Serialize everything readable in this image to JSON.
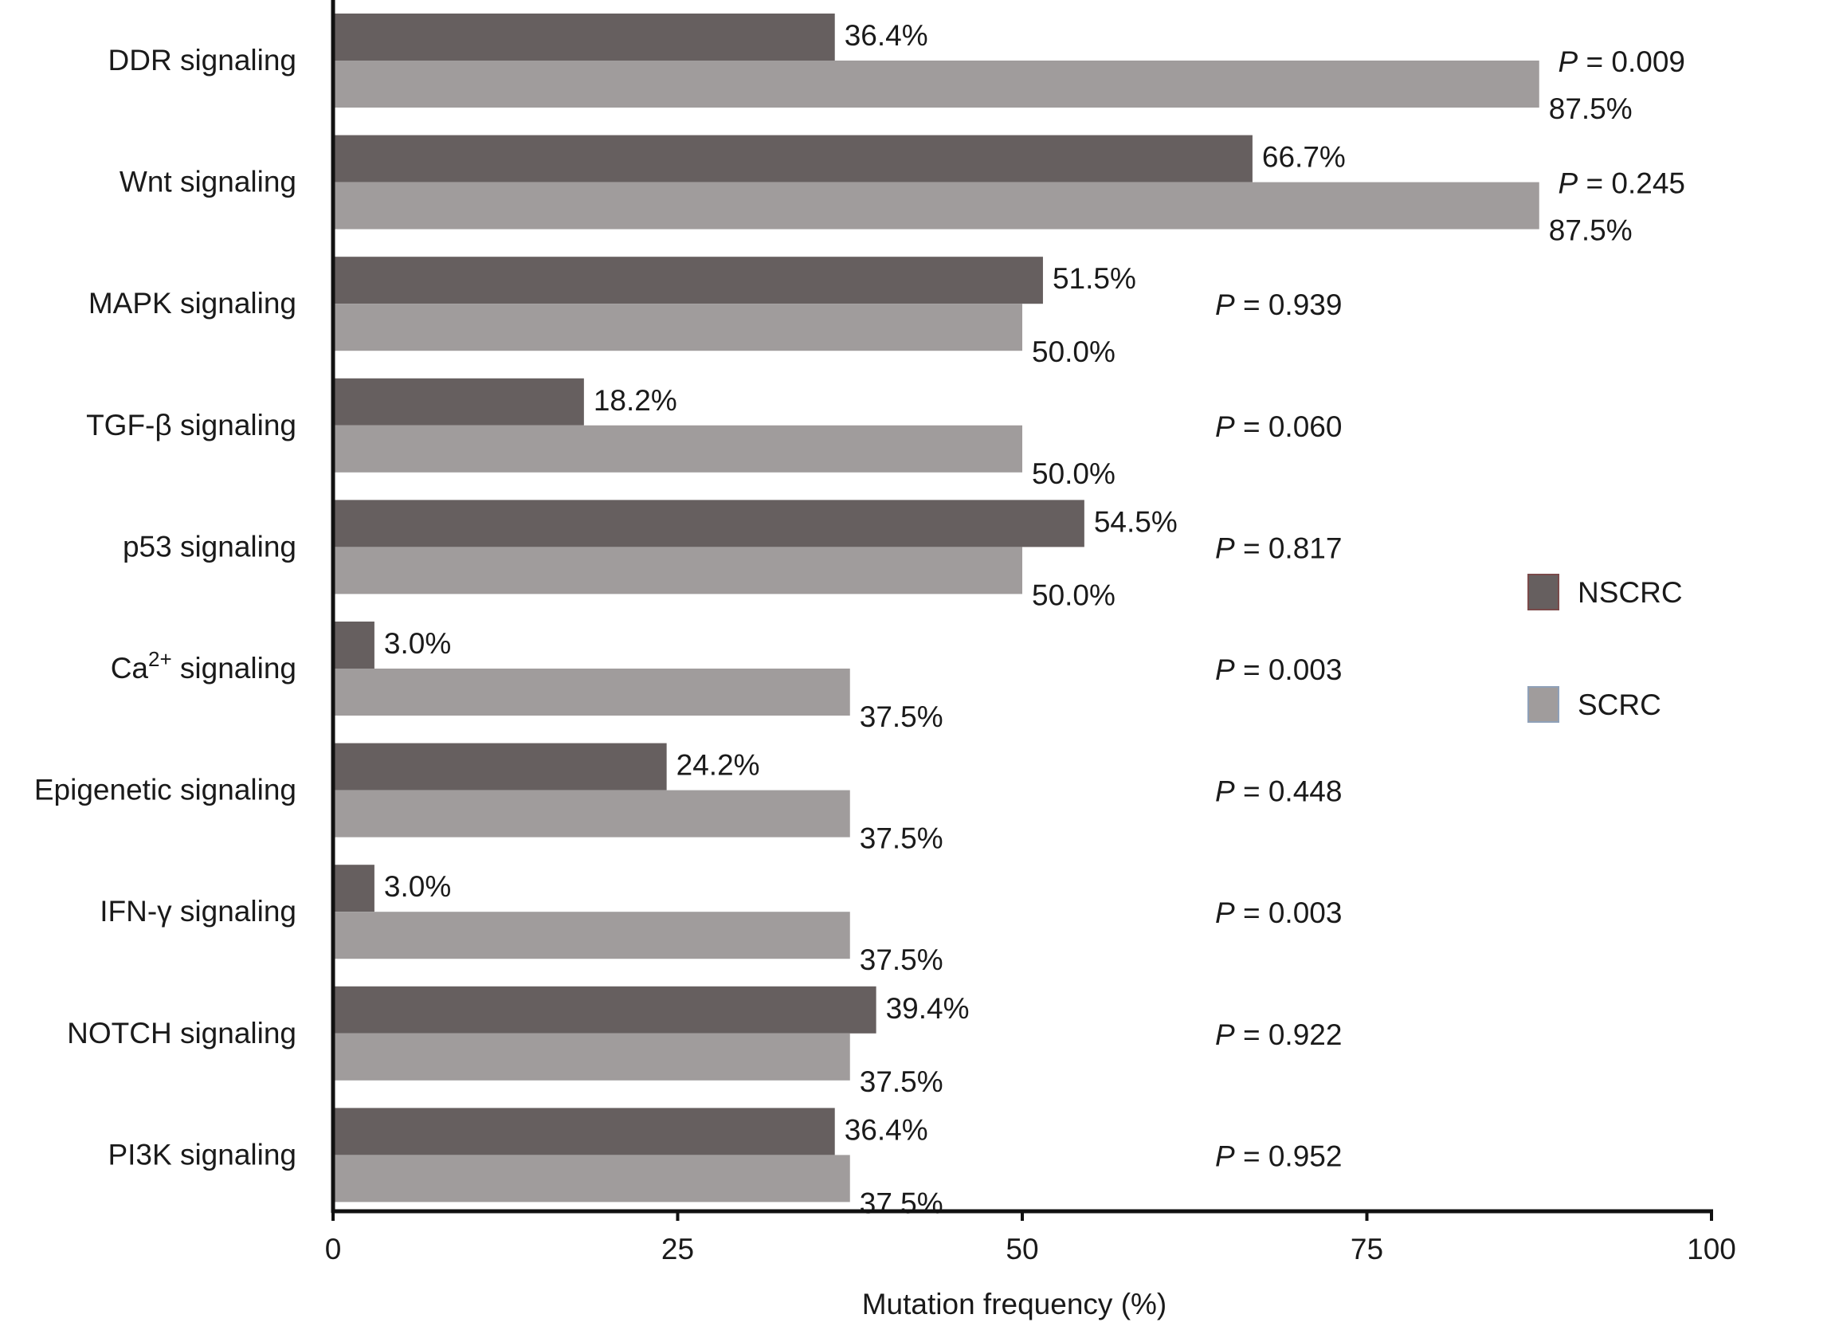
{
  "chart_data": {
    "type": "bar",
    "orientation": "horizontal",
    "title": "",
    "xlabel": "Mutation frequency (%)",
    "ylabel": "",
    "xlim": [
      0,
      100
    ],
    "xticks": [
      0,
      25,
      50,
      75,
      100
    ],
    "grid": false,
    "legend_position": "right",
    "categories": [
      {
        "label": "DDR signaling"
      },
      {
        "label": "Wnt signaling"
      },
      {
        "label": "MAPK signaling"
      },
      {
        "label": "TGF-β signaling"
      },
      {
        "label": "p53 signaling"
      },
      {
        "label": "Ca",
        "superscript": "2+",
        "suffix": " signaling"
      },
      {
        "label": "Epigenetic signaling"
      },
      {
        "label": "IFN-γ signaling"
      },
      {
        "label": "NOTCH signaling"
      },
      {
        "label": "PI3K signaling"
      }
    ],
    "series": [
      {
        "name": "NSCRC",
        "color": "#665f5f",
        "values": [
          36.4,
          66.7,
          51.5,
          18.2,
          54.5,
          3.0,
          24.2,
          3.0,
          39.4,
          36.4
        ],
        "labels": [
          "36.4%",
          "66.7%",
          "51.5%",
          "18.2%",
          "54.5%",
          "3.0%",
          "24.2%",
          "3.0%",
          "39.4%",
          "36.4%"
        ]
      },
      {
        "name": "SCRC",
        "color": "#a09c9c",
        "values": [
          87.5,
          87.5,
          50.0,
          50.0,
          50.0,
          37.5,
          37.5,
          37.5,
          37.5,
          37.5
        ],
        "labels": [
          "87.5%",
          "87.5%",
          "50.0%",
          "50.0%",
          "50.0%",
          "37.5%",
          "37.5%",
          "37.5%",
          "37.5%",
          "37.5%"
        ]
      }
    ],
    "p_values": {
      "prefix": "P",
      "values": [
        "= 0.009",
        "= 0.245",
        "= 0.939",
        "= 0.060",
        "= 0.817",
        "= 0.003",
        "= 0.448",
        "= 0.003",
        "= 0.922",
        "= 0.952"
      ]
    }
  }
}
